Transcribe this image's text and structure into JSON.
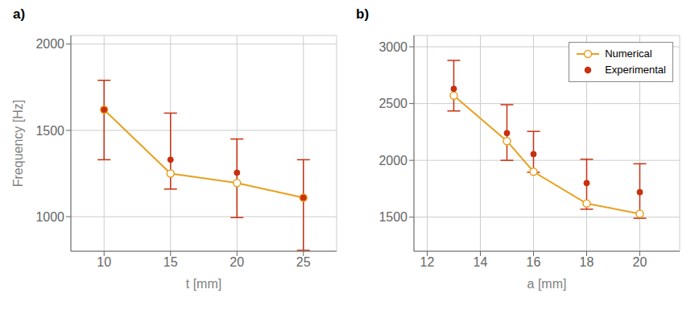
{
  "chart_data": [
    {
      "type": "line",
      "title": "a)",
      "x_label": "t [mm]",
      "y_label": "Frequency [Hz]",
      "x": [
        10,
        15,
        20,
        25
      ],
      "xlim": [
        7.5,
        27.5
      ],
      "xticks": [
        10,
        15,
        20,
        25
      ],
      "ylim": [
        800,
        2050
      ],
      "yticks": [
        1000,
        1500,
        2000
      ],
      "grid": true,
      "series": [
        {
          "name": "Numerical",
          "type": "line",
          "color": "#E8A020",
          "marker": "circle_open",
          "line_style": "solid",
          "values": [
            1620,
            1250,
            1195,
            1110
          ]
        },
        {
          "name": "Experimental",
          "type": "scatter",
          "color": "#C83010",
          "marker": "circle",
          "line_style": "none",
          "values": [
            1620,
            1330,
            1255,
            1110
          ],
          "error_upper": [
            170,
            270,
            195,
            220
          ],
          "error_lower": [
            290,
            170,
            260,
            305
          ]
        }
      ]
    },
    {
      "type": "line",
      "title": "b)",
      "x_label": "a [mm]",
      "x": [
        13,
        15,
        16,
        18,
        20
      ],
      "xlim": [
        11.5,
        21.5
      ],
      "xticks": [
        12,
        14,
        16,
        18,
        20
      ],
      "ylim": [
        1200,
        3100
      ],
      "yticks": [
        1500,
        2000,
        2500,
        3000
      ],
      "grid": true,
      "legend": "upper right",
      "series": [
        {
          "name": "Numerical",
          "type": "line",
          "color": "#E8A020",
          "marker": "circle_open",
          "line_style": "solid",
          "values": [
            2570,
            2170,
            1900,
            1620,
            1530
          ]
        },
        {
          "name": "Experimental",
          "type": "scatter",
          "color": "#C83010",
          "marker": "circle",
          "line_style": "none",
          "values": [
            2630,
            2240,
            2055,
            1800,
            1720
          ],
          "error_upper": [
            250,
            250,
            200,
            210,
            250
          ],
          "error_lower": [
            195,
            240,
            160,
            230,
            230
          ]
        }
      ]
    }
  ]
}
